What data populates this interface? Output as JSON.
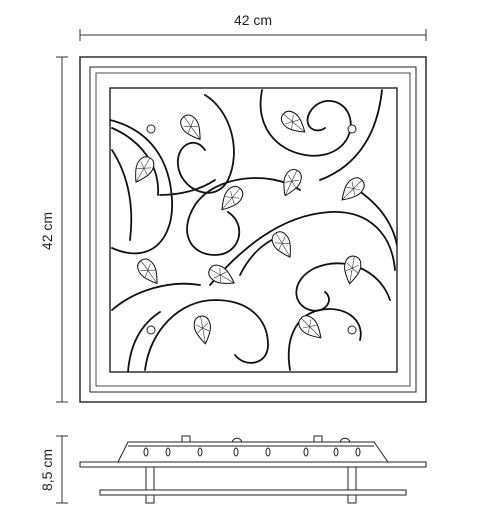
{
  "dimensions": {
    "width_label": "42 cm",
    "height_label": "42 cm",
    "depth_label": "8,5 cm"
  }
}
